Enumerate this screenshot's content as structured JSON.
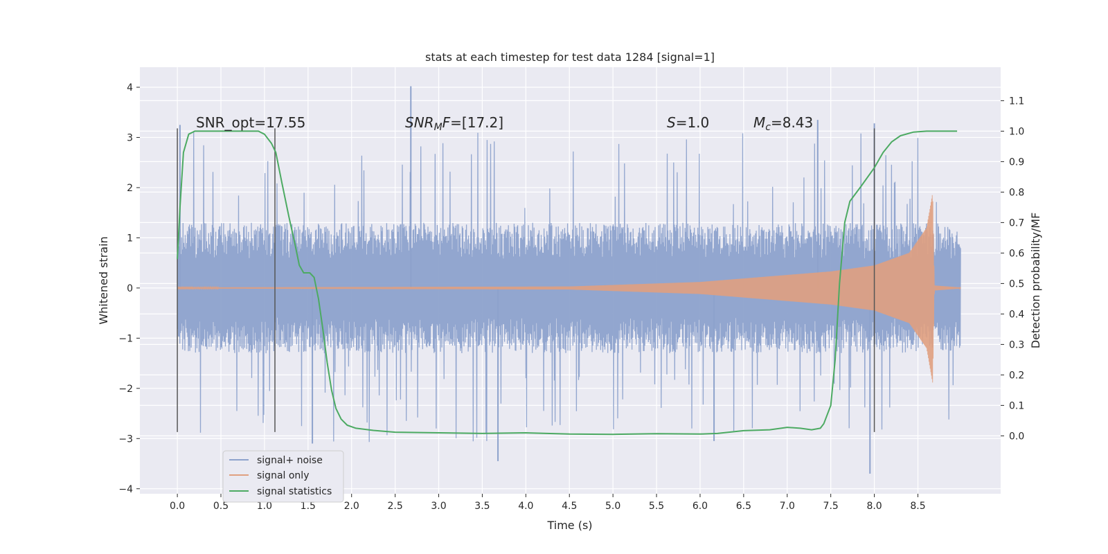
{
  "chart_data": {
    "type": "line",
    "title": "stats at each timestep for test data 1284 [signal=1]",
    "xlabel": "Time (s)",
    "ylabel": "Whitened strain",
    "y2label": "Detection probability/MF",
    "xlim": [
      -0.43,
      9.45
    ],
    "ylim": [
      -4.1,
      4.4
    ],
    "y2lim": [
      -0.19,
      1.21
    ],
    "x_ticks": [
      0.0,
      0.5,
      1.0,
      1.5,
      2.0,
      2.5,
      3.0,
      3.5,
      4.0,
      4.5,
      5.0,
      5.5,
      6.0,
      6.5,
      7.0,
      7.5,
      8.0,
      8.5
    ],
    "x_tick_labels": [
      "0.0",
      "0.5",
      "1.0",
      "1.5",
      "2.0",
      "2.5",
      "3.0",
      "3.5",
      "4.0",
      "4.5",
      "5.0",
      "5.5",
      "6.0",
      "6.5",
      "7.0",
      "7.5",
      "8.0",
      "8.5"
    ],
    "y_ticks": [
      4,
      3,
      2,
      1,
      0,
      -1,
      -2,
      -3,
      -4
    ],
    "y_tick_labels": [
      "4",
      "3",
      "2",
      "1",
      "0",
      "−1",
      "−2",
      "−3",
      "−4"
    ],
    "y2_ticks": [
      1.1,
      1.0,
      0.9,
      0.8,
      0.7,
      0.6,
      0.5,
      0.4,
      0.3,
      0.2,
      0.1,
      0.0
    ],
    "y2_tick_labels": [
      "1.1",
      "1.0",
      "0.9",
      "0.8",
      "0.7",
      "0.6",
      "0.5",
      "0.4",
      "0.3",
      "0.2",
      "0.1",
      "0.0"
    ],
    "annotations": {
      "snr_opt": "SNR_opt=17.55",
      "snr_mf_main": "SNR",
      "snr_mf_sub": "M",
      "snr_mf_f": "F",
      "snr_mf_value": "=[17.2]",
      "s_symbol": "S",
      "s_value": "=1.0",
      "mc_symbol": "M",
      "mc_sub": "c",
      "mc_value": "=8.43"
    },
    "vertical_lines": [
      {
        "x": 0.0,
        "y_from": -2.87,
        "y_to": 3.18
      },
      {
        "x": 1.12,
        "y_from": -2.87,
        "y_to": 3.18
      },
      {
        "x": 8.0,
        "y_from": -2.87,
        "y_to": 3.18
      }
    ],
    "series": [
      {
        "name": "signal+ noise",
        "color": "#8da2cc",
        "x_range": [
          0.0,
          8.99
        ],
        "typical_amplitude": 1.3,
        "max": 4.0,
        "min": -3.7,
        "spikes": [
          {
            "x": 2.68,
            "y": 4.02
          },
          {
            "x": 0.03,
            "y": 3.25
          },
          {
            "x": 7.35,
            "y": 3.35
          },
          {
            "x": 8.0,
            "y": 3.28
          },
          {
            "x": 7.95,
            "y": -3.7
          },
          {
            "x": 3.68,
            "y": -3.45
          },
          {
            "x": 1.55,
            "y": -3.1
          },
          {
            "x": 6.16,
            "y": -3.05
          }
        ]
      },
      {
        "name": "signal only",
        "color": "#e0a080",
        "x_range": [
          0.0,
          8.99
        ],
        "description_points": [
          {
            "x": 0.0,
            "amp": 0.01
          },
          {
            "x": 4.5,
            "amp": 0.03
          },
          {
            "x": 6.0,
            "amp": 0.12
          },
          {
            "x": 7.5,
            "amp": 0.33
          },
          {
            "x": 8.0,
            "amp": 0.45
          },
          {
            "x": 8.4,
            "amp": 0.7
          },
          {
            "x": 8.6,
            "amp": 1.2
          },
          {
            "x": 8.67,
            "amp": 1.9
          },
          {
            "x": 8.69,
            "amp": 0.05
          },
          {
            "x": 8.99,
            "amp": 0.01
          }
        ]
      },
      {
        "name": "signal statistics",
        "color": "#4caa62",
        "axis": "right",
        "points": [
          [
            0.0,
            0.58
          ],
          [
            0.03,
            0.75
          ],
          [
            0.07,
            0.93
          ],
          [
            0.13,
            0.99
          ],
          [
            0.2,
            1.0
          ],
          [
            0.4,
            1.0
          ],
          [
            0.6,
            1.0
          ],
          [
            0.8,
            1.0
          ],
          [
            0.93,
            1.0
          ],
          [
            1.0,
            0.99
          ],
          [
            1.08,
            0.96
          ],
          [
            1.13,
            0.93
          ],
          [
            1.2,
            0.83
          ],
          [
            1.28,
            0.72
          ],
          [
            1.35,
            0.63
          ],
          [
            1.4,
            0.56
          ],
          [
            1.45,
            0.535
          ],
          [
            1.52,
            0.535
          ],
          [
            1.57,
            0.52
          ],
          [
            1.62,
            0.45
          ],
          [
            1.67,
            0.35
          ],
          [
            1.72,
            0.24
          ],
          [
            1.77,
            0.15
          ],
          [
            1.82,
            0.09
          ],
          [
            1.88,
            0.055
          ],
          [
            1.95,
            0.035
          ],
          [
            2.05,
            0.025
          ],
          [
            2.25,
            0.018
          ],
          [
            2.5,
            0.012
          ],
          [
            3.0,
            0.01
          ],
          [
            3.5,
            0.008
          ],
          [
            4.0,
            0.01
          ],
          [
            4.5,
            0.006
          ],
          [
            5.0,
            0.005
          ],
          [
            5.5,
            0.007
          ],
          [
            6.0,
            0.006
          ],
          [
            6.2,
            0.008
          ],
          [
            6.5,
            0.017
          ],
          [
            6.8,
            0.02
          ],
          [
            7.0,
            0.028
          ],
          [
            7.15,
            0.025
          ],
          [
            7.28,
            0.02
          ],
          [
            7.38,
            0.025
          ],
          [
            7.42,
            0.04
          ],
          [
            7.5,
            0.1
          ],
          [
            7.55,
            0.25
          ],
          [
            7.6,
            0.5
          ],
          [
            7.66,
            0.7
          ],
          [
            7.72,
            0.77
          ],
          [
            7.85,
            0.82
          ],
          [
            8.0,
            0.88
          ],
          [
            8.1,
            0.93
          ],
          [
            8.2,
            0.965
          ],
          [
            8.3,
            0.985
          ],
          [
            8.45,
            0.997
          ],
          [
            8.6,
            1.0
          ],
          [
            8.95,
            1.0
          ]
        ]
      }
    ],
    "legend": {
      "position": "lower-left",
      "entries": [
        "signal+ noise",
        "signal only",
        "signal statistics"
      ]
    }
  },
  "colors": {
    "axes_background": "#eaeaf2",
    "grid": "#ffffff",
    "noise": "#8da2cc",
    "signal": "#e0a080",
    "stat": "#4caa62",
    "vline": "#555555"
  }
}
